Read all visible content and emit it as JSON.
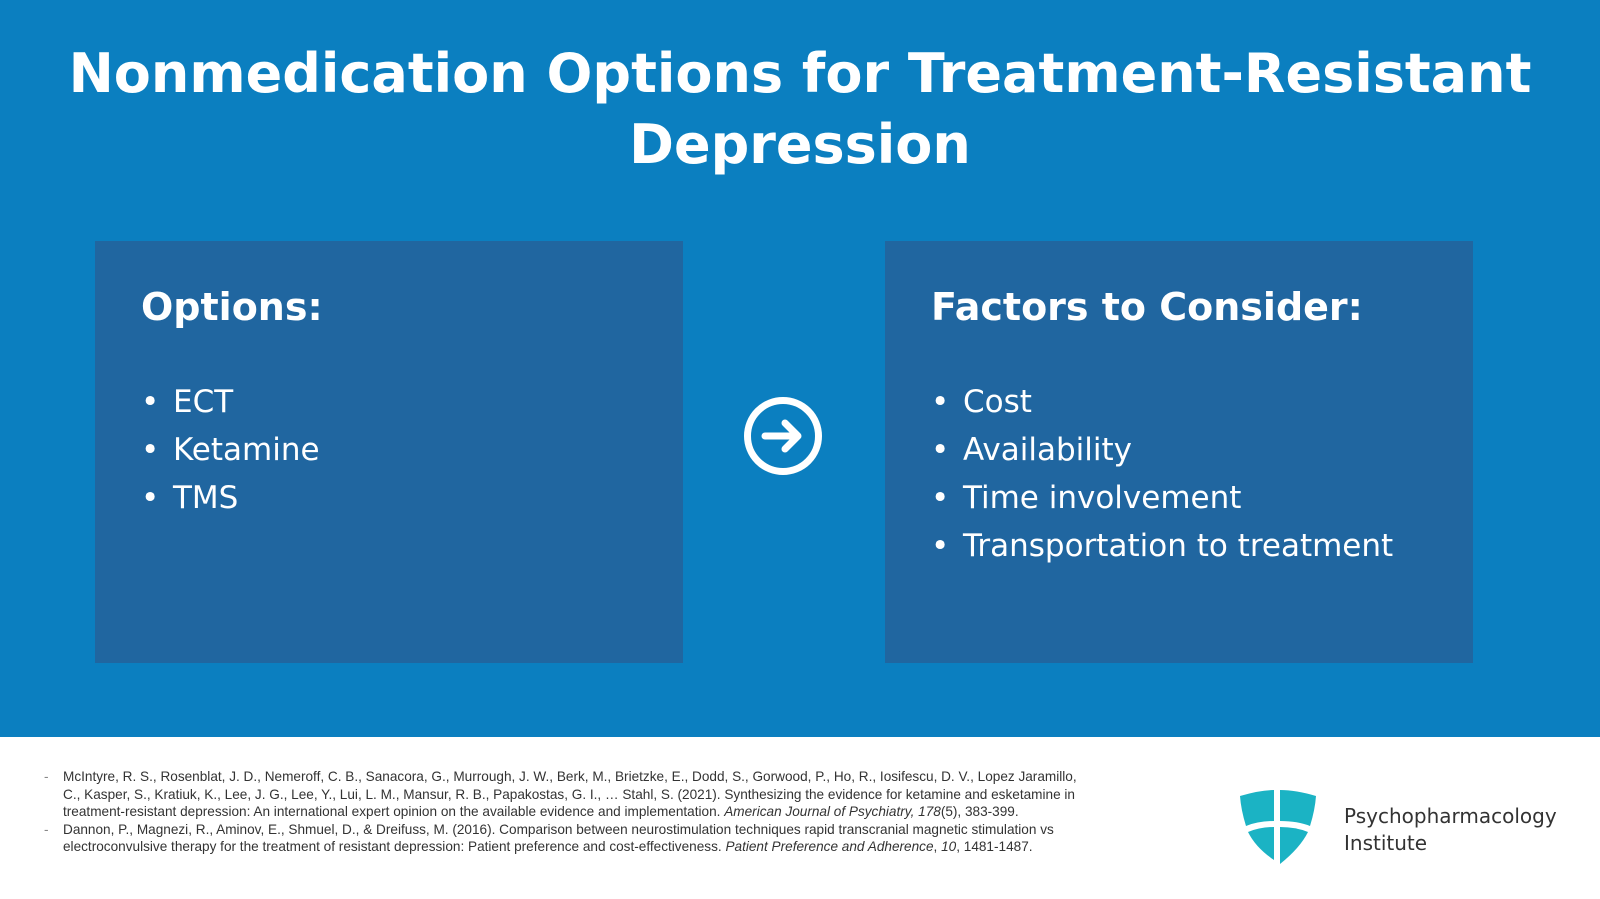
{
  "title": {
    "line1": "Nonmedication Options for Treatment-Resistant",
    "line2": "Depression"
  },
  "options": {
    "heading": "Options:",
    "items": [
      "ECT",
      "Ketamine",
      "TMS"
    ]
  },
  "factors": {
    "heading": "Factors to Consider:",
    "items": [
      "Cost",
      "Availability",
      "Time involvement",
      "Transportation to treatment"
    ]
  },
  "arrow_icon": "arrow-right-circle-icon",
  "bullet": "•",
  "dash": "-",
  "references": [
    {
      "l1": "McIntyre, R. S., Rosenblat, J. D., Nemeroff, C. B., Sanacora, G., Murrough, J. W., Berk, M., Brietzke, E., Dodd, S., Gorwood, P., Ho, R., Iosifescu, D. V., Lopez Jaramillo,",
      "l2": "C., Kasper, S., Kratiuk, K., Lee, J. G., Lee, Y., Lui, L. M., Mansur, R. B., Papakostas, G. I., … Stahl, S. (2021). Synthesizing the evidence for ketamine and esketamine in",
      "l3a": "treatment-resistant depression: An international expert opinion on the available evidence and implementation. ",
      "l3b": "American Journal of Psychiatry, 178",
      "l3c": "(5), 383-399."
    },
    {
      "l1": "Dannon, P., Magnezi, R., Aminov, E., Shmuel, D., & Dreifuss, M. (2016). Comparison between neurostimulation techniques rapid transcranial magnetic stimulation vs",
      "l2a": "electroconvulsive therapy for the treatment of resistant depression: Patient preference and cost-effectiveness. ",
      "l2b": "Patient Preference and Adherence",
      "l2c": ", ",
      "l2d": "10",
      "l2e": ", 1481-1487."
    }
  ],
  "logo": {
    "line1": "Psychopharmacology",
    "line2": "Institute",
    "color": "#1bb3c4"
  },
  "colors": {
    "background": "#0b7fc0",
    "box": "#2066a0"
  }
}
